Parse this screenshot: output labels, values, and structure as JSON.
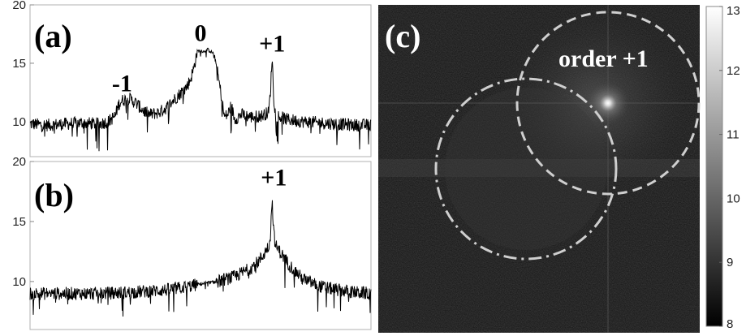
{
  "chart_data": [
    {
      "panel_label": "(a)",
      "type": "line",
      "ylim": [
        7,
        20
      ],
      "yticks": [
        "10",
        "15",
        "20"
      ],
      "grid": false,
      "annotations": [
        {
          "text": "-1",
          "x": 0.27,
          "y": 12.6
        },
        {
          "text": "0",
          "x": 0.5,
          "y": 16.9
        },
        {
          "text": "+1",
          "x": 0.71,
          "y": 16.0
        }
      ],
      "series": [
        {
          "x": [
            0.0,
            0.05,
            0.1,
            0.15,
            0.2,
            0.23,
            0.25,
            0.26,
            0.27,
            0.29,
            0.31,
            0.33,
            0.35,
            0.38,
            0.4,
            0.42,
            0.44,
            0.46,
            0.47,
            0.48,
            0.49,
            0.5,
            0.51,
            0.52,
            0.53,
            0.54,
            0.55,
            0.56,
            0.57,
            0.58,
            0.59,
            0.6,
            0.62,
            0.65,
            0.68,
            0.7,
            0.705,
            0.71,
            0.715,
            0.72,
            0.75,
            0.8,
            0.85,
            0.9,
            0.95,
            1.0
          ],
          "y": [
            9.8,
            9.7,
            9.8,
            9.9,
            9.8,
            10.0,
            10.5,
            11.5,
            11.8,
            12.0,
            11.6,
            11.0,
            10.6,
            10.8,
            11.2,
            11.8,
            12.4,
            13.0,
            13.6,
            14.5,
            16.0,
            16.1,
            16.0,
            16.2,
            16.0,
            15.8,
            14.2,
            12.4,
            10.4,
            10.6,
            11.4,
            10.2,
            10.6,
            10.4,
            10.5,
            10.8,
            12.5,
            15.6,
            12.0,
            10.6,
            10.2,
            10.0,
            9.9,
            9.8,
            9.7,
            9.7
          ]
        }
      ]
    },
    {
      "panel_label": "(b)",
      "type": "line",
      "ylim": [
        6,
        20
      ],
      "yticks": [
        "10",
        "15",
        "20"
      ],
      "grid": false,
      "annotations": [
        {
          "text": "+1",
          "x": 0.715,
          "y": 18.0
        }
      ],
      "series": [
        {
          "x": [
            0.0,
            0.1,
            0.2,
            0.3,
            0.4,
            0.45,
            0.5,
            0.55,
            0.6,
            0.62,
            0.64,
            0.66,
            0.68,
            0.7,
            0.705,
            0.71,
            0.715,
            0.72,
            0.74,
            0.76,
            0.78,
            0.8,
            0.85,
            0.9,
            0.95,
            1.0
          ],
          "y": [
            9.0,
            9.0,
            9.0,
            9.1,
            9.3,
            9.5,
            9.8,
            10.0,
            10.4,
            10.7,
            11.0,
            11.4,
            12.0,
            13.0,
            13.8,
            16.9,
            14.0,
            13.0,
            12.2,
            11.4,
            10.8,
            10.2,
            9.6,
            9.3,
            9.1,
            9.0
          ]
        }
      ]
    },
    {
      "panel_label": "(c)",
      "type": "heatmap",
      "colormap": "gray",
      "colorbar": {
        "min": 8,
        "max": 13,
        "ticks": [
          "8",
          "9",
          "10",
          "11",
          "12",
          "13"
        ]
      },
      "annotations": [
        {
          "text": "order +1",
          "x": 0.72,
          "y": 0.85
        }
      ]
    }
  ]
}
